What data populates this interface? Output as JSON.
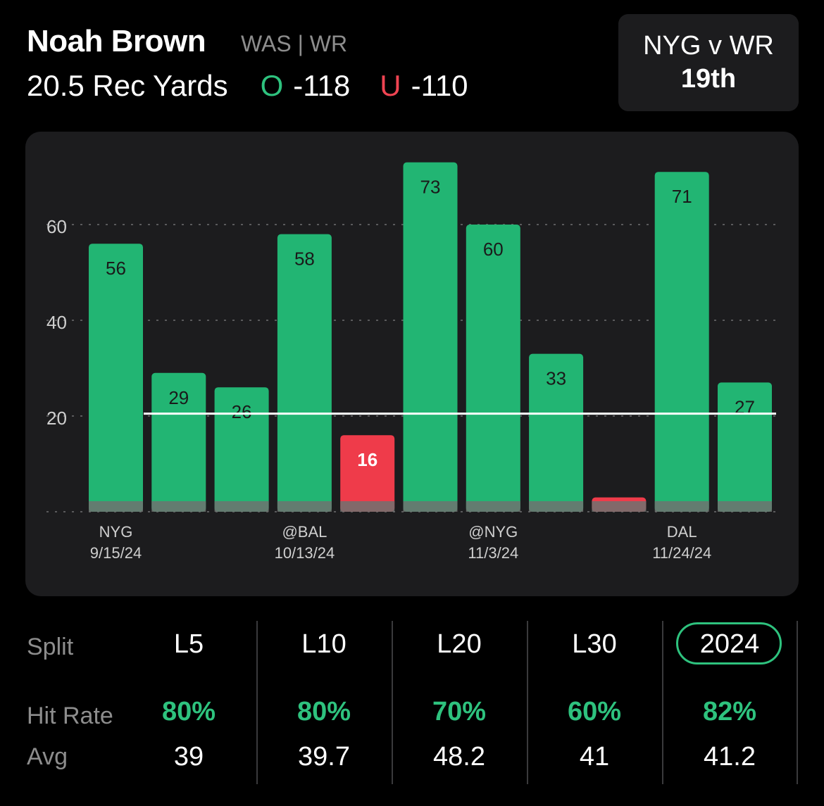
{
  "header": {
    "player_name": "Noah Brown",
    "team_position": "WAS | WR",
    "prop": "20.5 Rec Yards",
    "over_label": "O",
    "over_odds": "-118",
    "under_label": "U",
    "under_odds": "-110",
    "colors": {
      "over": "#2ec27e",
      "under": "#ef4452"
    }
  },
  "matchup": {
    "title": "NYG v WR",
    "rank": "19th"
  },
  "chart_data": {
    "type": "bar",
    "line": 20.5,
    "ylim": [
      0,
      75
    ],
    "yticks": [
      20,
      40,
      60
    ],
    "values": [
      56,
      29,
      26,
      58,
      16,
      73,
      60,
      33,
      3,
      71,
      27
    ],
    "value_labels": [
      "56",
      "29",
      "26",
      "58",
      "16",
      "73",
      "60",
      "33",
      "",
      "71",
      "27"
    ],
    "x_labels": [
      {
        "index": 0,
        "opponent": "NYG",
        "date": "9/15/24"
      },
      {
        "index": 3,
        "opponent": "@BAL",
        "date": "10/13/24"
      },
      {
        "index": 6,
        "opponent": "@NYG",
        "date": "11/3/24"
      },
      {
        "index": 9,
        "opponent": "DAL",
        "date": "11/24/24"
      }
    ],
    "colors": {
      "hit": "#22b573",
      "miss": "#ef3b4a",
      "base": "#6f7270"
    }
  },
  "splits": {
    "row_labels": {
      "split": "Split",
      "hit_rate": "Hit Rate",
      "avg": "Avg"
    },
    "selected": "2024",
    "columns": [
      {
        "name": "L5",
        "hit_rate": "80%",
        "avg": "39"
      },
      {
        "name": "L10",
        "hit_rate": "80%",
        "avg": "39.7"
      },
      {
        "name": "L20",
        "hit_rate": "70%",
        "avg": "48.2"
      },
      {
        "name": "L30",
        "hit_rate": "60%",
        "avg": "41"
      },
      {
        "name": "2024",
        "hit_rate": "82%",
        "avg": "41.2"
      }
    ]
  }
}
